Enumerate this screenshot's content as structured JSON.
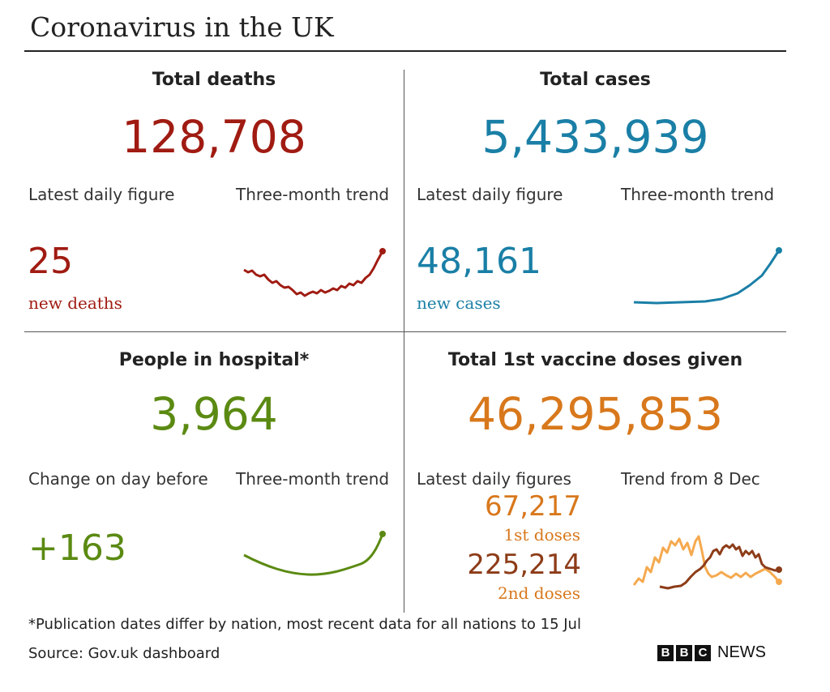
{
  "title": "Coronavirus in the UK",
  "colors": {
    "deaths": "#a01b12",
    "cases": "#1a7fa6",
    "hospital": "#5b8a12",
    "vaccine": "#d8781c",
    "vaccine_1st_line": "#f5a94e",
    "vaccine_2nd": "#8d3c18"
  },
  "deaths": {
    "heading": "Total deaths",
    "total": "128,708",
    "latest_label": "Latest daily figure",
    "trend_label": "Three-month trend",
    "latest_value": "25",
    "latest_sub": "new deaths"
  },
  "cases": {
    "heading": "Total cases",
    "total": "5,433,939",
    "latest_label": "Latest daily figure",
    "trend_label": "Three-month trend",
    "latest_value": "48,161",
    "latest_sub": "new cases"
  },
  "hospital": {
    "heading": "People in hospital*",
    "total": "3,964",
    "latest_label": "Change on day before",
    "trend_label": "Three-month trend",
    "latest_value": "+163"
  },
  "vaccine": {
    "heading": "Total 1st vaccine doses given",
    "total": "46,295,853",
    "latest_label": "Latest daily figures",
    "trend_label": "Trend from 8 Dec",
    "first_value": "67,217",
    "first_sub": "1st doses",
    "second_value": "225,214",
    "second_sub": "2nd doses"
  },
  "footnote": "*Publication dates differ by nation, most recent data for all nations to 15 Jul",
  "source": "Source: Gov.uk dashboard",
  "logo": {
    "letters": [
      "B",
      "B",
      "C"
    ],
    "word": "NEWS"
  }
}
